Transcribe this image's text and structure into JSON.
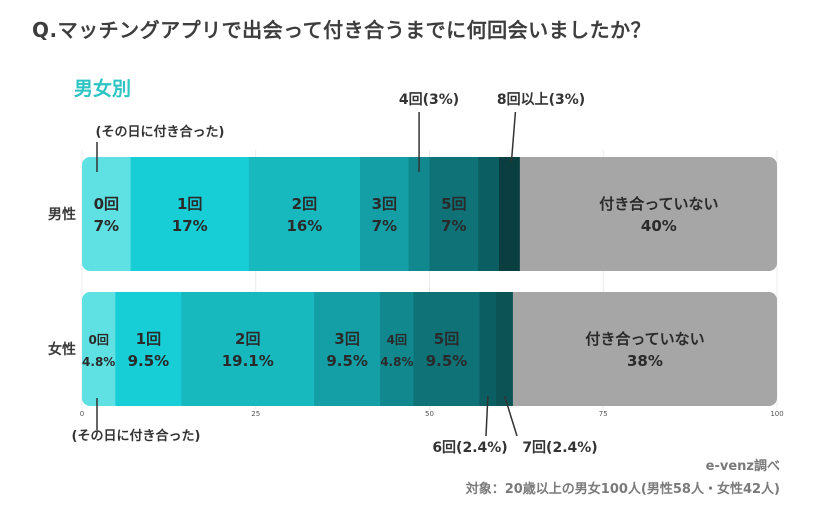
{
  "title": "Q.マッチングアプリで出会って付き合うまでに何回会いましたか？",
  "subtitle": "男女別",
  "credit": "e-venz調べ",
  "target": "対象：20歳以上の男女100人(男性58人・女性42人)",
  "chart_data": {
    "type": "bar",
    "orientation": "horizontal-stacked-100",
    "categories": [
      "男性",
      "女性"
    ],
    "xlim": [
      0,
      100
    ],
    "xticks": [
      "0",
      "25",
      "50",
      "75",
      "100"
    ],
    "annotations": {
      "same_day_top": "(その日に付き合った)",
      "same_day_bottom": "(その日に付き合った)",
      "male_4": "4回(3%)",
      "male_8plus": "8回以上(3%)",
      "female_6": "6回(2.4%)",
      "female_7": "7回(2.4%)"
    },
    "series": [
      {
        "category": "男性",
        "segments": [
          {
            "label": "0回",
            "value": 7,
            "value_label": "7%",
            "color": "#5fe0e2",
            "text_color": "#2a2a2a"
          },
          {
            "label": "1回",
            "value": 17,
            "value_label": "17%",
            "color": "#17cdd6",
            "text_color": "#2a2a2a"
          },
          {
            "label": "2回",
            "value": 16,
            "value_label": "16%",
            "color": "#18b8bf",
            "text_color": "#2a2a2a"
          },
          {
            "label": "3回",
            "value": 7,
            "value_label": "7%",
            "color": "#139fa5",
            "text_color": "#2a2a2a"
          },
          {
            "label": "",
            "value": 3,
            "value_label": "",
            "color": "#10888d",
            "text_color": "#2a2a2a"
          },
          {
            "label": "5回",
            "value": 7,
            "value_label": "7%",
            "color": "#0e7277",
            "text_color": "#2a2a2a"
          },
          {
            "label": "",
            "value": 3,
            "value_label": "",
            "color": "#0b5f63",
            "text_color": "#2a2a2a"
          },
          {
            "label": "",
            "value": 3,
            "value_label": "",
            "color": "#0a3e40",
            "text_color": "#2a2a2a"
          },
          {
            "label": "付き合っていない",
            "value": 40,
            "value_label": "40%",
            "color": "#a6a6a6",
            "text_color": "#2a2a2a"
          }
        ]
      },
      {
        "category": "女性",
        "segments": [
          {
            "label": "0回",
            "value": 4.8,
            "value_label": "4.8%",
            "color": "#5fe0e2",
            "text_color": "#2a2a2a"
          },
          {
            "label": "1回",
            "value": 9.5,
            "value_label": "9.5%",
            "color": "#17cdd6",
            "text_color": "#2a2a2a"
          },
          {
            "label": "2回",
            "value": 19.1,
            "value_label": "19.1%",
            "color": "#18b8bf",
            "text_color": "#2a2a2a"
          },
          {
            "label": "3回",
            "value": 9.5,
            "value_label": "9.5%",
            "color": "#139fa5",
            "text_color": "#2a2a2a"
          },
          {
            "label": "4回",
            "value": 4.8,
            "value_label": "4.8%",
            "color": "#10888d",
            "text_color": "#2a2a2a"
          },
          {
            "label": "5回",
            "value": 9.5,
            "value_label": "9.5%",
            "color": "#0e7277",
            "text_color": "#2a2a2a"
          },
          {
            "label": "",
            "value": 2.4,
            "value_label": "",
            "color": "#0b5f63",
            "text_color": "#2a2a2a"
          },
          {
            "label": "",
            "value": 2.4,
            "value_label": "",
            "color": "#0c5356",
            "text_color": "#2a2a2a"
          },
          {
            "label": "付き合っていない",
            "value": 38,
            "value_label": "38%",
            "color": "#a6a6a6",
            "text_color": "#2a2a2a"
          }
        ]
      }
    ]
  }
}
